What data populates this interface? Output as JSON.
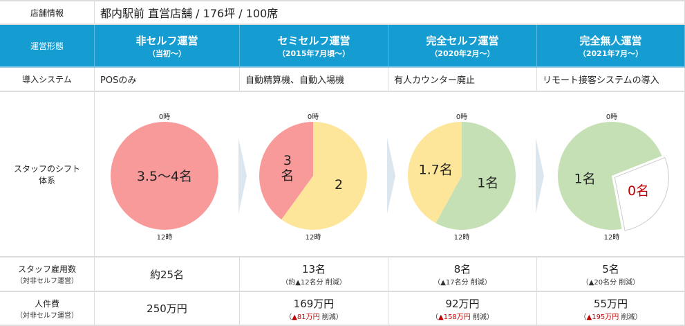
{
  "store": {
    "label": "店舗情報",
    "value": "都内駅前 直営店舗 / 176坪 / 100席"
  },
  "header": {
    "label": "運営形態",
    "columns": [
      {
        "title": "非セルフ運営",
        "sub": "（当初～）"
      },
      {
        "title": "セミセルフ運営",
        "sub": "（2015年7月頃～）"
      },
      {
        "title": "完全セルフ運営",
        "sub": "（2020年2月～）"
      },
      {
        "title": "完全無人運営",
        "sub": "（2021年7月～）"
      }
    ]
  },
  "system": {
    "label": "導入システム",
    "values": [
      "POSのみ",
      "自動精算機、自動入場機",
      "有人カウンター廃止",
      "リモート接客システムの導入"
    ]
  },
  "shift": {
    "label1": "スタッフのシフト",
    "label2": "体系",
    "top": "0時",
    "bottom": "12時",
    "pies": [
      [
        {
          "fraction": 1.0,
          "color": "#f99a9a",
          "label": "3.5～4名"
        }
      ],
      [
        {
          "fraction": 0.6,
          "color": "#fde59a",
          "label": "2"
        },
        {
          "fraction": 0.4,
          "color": "#f99a9a",
          "label": "3\n名"
        }
      ],
      [
        {
          "fraction": 0.58,
          "color": "#c5e0b4",
          "label": "1名"
        },
        {
          "fraction": 0.42,
          "color": "#fde59a",
          "label": "1.7名"
        }
      ],
      [
        {
          "fraction": 0.19,
          "color": "#c5e0b4",
          "label": ""
        },
        {
          "fraction": 0.28,
          "color": "#ffffff",
          "label": "0名",
          "explode": true
        },
        {
          "fraction": 0.53,
          "color": "#c5e0b4",
          "label": "1名"
        }
      ]
    ]
  },
  "staff": {
    "label": "スタッフ雇用数",
    "note": "（対非セルフ運営）",
    "values": [
      {
        "main": "約25名",
        "sub": ""
      },
      {
        "main": "13名",
        "sub": "（約▲12名分 削減）"
      },
      {
        "main": "8名",
        "sub": "（▲17名分 削減）"
      },
      {
        "main": "5名",
        "sub": "（▲20名分 削減）"
      }
    ]
  },
  "cost": {
    "label": "人件費",
    "note": "（対非セルフ運営）",
    "values": [
      {
        "main": "250万円",
        "red": "",
        "sub": ""
      },
      {
        "main": "169万円",
        "red": "▲81万円",
        "sub": " 削減）"
      },
      {
        "main": "92万円",
        "red": "▲158万円",
        "sub": " 削減）"
      },
      {
        "main": "55万円",
        "red": "▲195万円",
        "sub": " 削減）"
      }
    ]
  }
}
